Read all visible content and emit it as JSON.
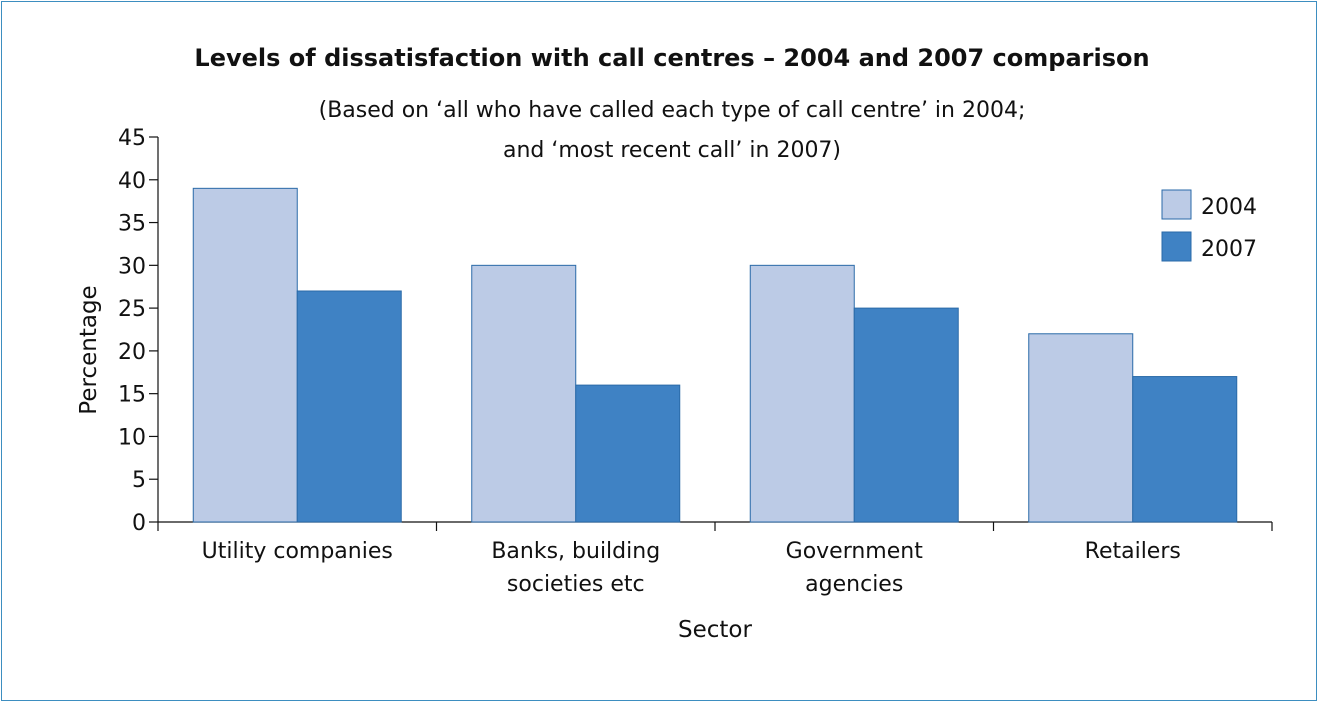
{
  "chart_data": {
    "type": "bar",
    "title": "Levels of dissatisfaction with call centres – 2004 and 2007 comparison",
    "subtitle": [
      "(Based on ‘all who have called each type of call centre’ in 2004;",
      "and ‘most recent call’ in 2007)"
    ],
    "xlabel": "Sector",
    "ylabel": "Percentage",
    "categories": [
      [
        "Utility companies"
      ],
      [
        "Banks, building",
        "societies etc"
      ],
      [
        "Government",
        "agencies"
      ],
      [
        "Retailers"
      ]
    ],
    "series": [
      {
        "name": "2004",
        "values": [
          39,
          30,
          30,
          22
        ],
        "color": "#bccbe6"
      },
      {
        "name": "2007",
        "values": [
          27,
          16,
          25,
          17
        ],
        "color": "#3f82c4"
      }
    ],
    "ylim": [
      0,
      45
    ],
    "yticks": [
      0,
      5,
      10,
      15,
      20,
      25,
      30,
      35,
      40,
      45
    ],
    "grid": false,
    "legend": "top-right",
    "colors": {
      "frame": "#3d8ec0",
      "bar_edge": "#2a6aa8"
    }
  }
}
